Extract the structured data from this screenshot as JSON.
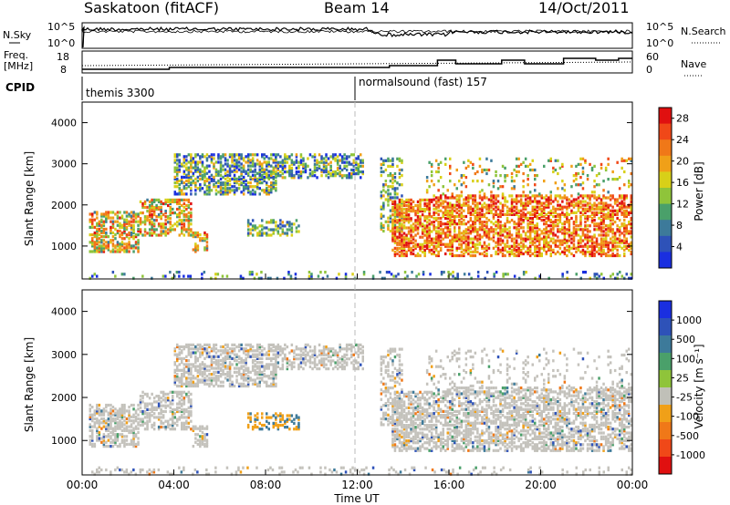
{
  "header": {
    "station": "Saskatoon (fitACF)",
    "beam": "Beam 14",
    "date": "14/Oct/2011"
  },
  "side_labels": {
    "nsky": "N.Sky",
    "freq": "Freq.",
    "mhz": "[MHz]",
    "cpid": "CPID",
    "nsearch": "N.Search",
    "nave": "Nave"
  },
  "scales": {
    "nsky_top": "10^5",
    "nsky_bottom": "10^0",
    "nsearch_top": "10^5",
    "nsearch_bottom": "10^0",
    "freq_top": "18",
    "freq_bottom": "8",
    "nave_top": "60",
    "nave_bottom": "0"
  },
  "cpid": {
    "first": "themis 3300",
    "second": "normalsound (fast) 157"
  },
  "colors": {
    "power": [
      "#1a2fe0",
      "#2e52b8",
      "#3d7a9a",
      "#4aa06a",
      "#8fc43a",
      "#d8d018",
      "#f0a018",
      "#f07818",
      "#f04818",
      "#e01010"
    ],
    "velocity": [
      "#1a2fe0",
      "#2e52b8",
      "#3d7a9a",
      "#4aa06a",
      "#8fc43a",
      "#c0c0b8",
      "#f0a018",
      "#f07818",
      "#f04818",
      "#e01010"
    ],
    "gray_scatter": "#c4c2bc"
  },
  "chart_data": [
    {
      "type": "heatmap",
      "name": "power",
      "ylabel": "Slant Range [km]",
      "ylim": [
        200,
        4500
      ],
      "yticks": [
        "1000",
        "2000",
        "3000",
        "4000"
      ],
      "xlim": [
        0,
        24
      ],
      "colorbar_label": "Power [dB]",
      "colorbar_ticks": [
        "4",
        "8",
        "12",
        "16",
        "20",
        "24",
        "28"
      ],
      "colorbar_range": [
        0,
        30
      ]
    },
    {
      "type": "heatmap",
      "name": "velocity",
      "ylabel": "Slant Range [km]",
      "ylim": [
        200,
        4500
      ],
      "yticks": [
        "1000",
        "2000",
        "3000",
        "4000"
      ],
      "xlim": [
        0,
        24
      ],
      "xlabel": "Time UT",
      "xticks": [
        "00:00",
        "04:00",
        "08:00",
        "12:00",
        "16:00",
        "20:00",
        "00:00"
      ],
      "colorbar_label": "Velocity [m s⁻¹]",
      "colorbar_ticks": [
        "1000",
        "500",
        "100",
        "25",
        "-25",
        "-100",
        "-500",
        "-1000"
      ]
    }
  ]
}
